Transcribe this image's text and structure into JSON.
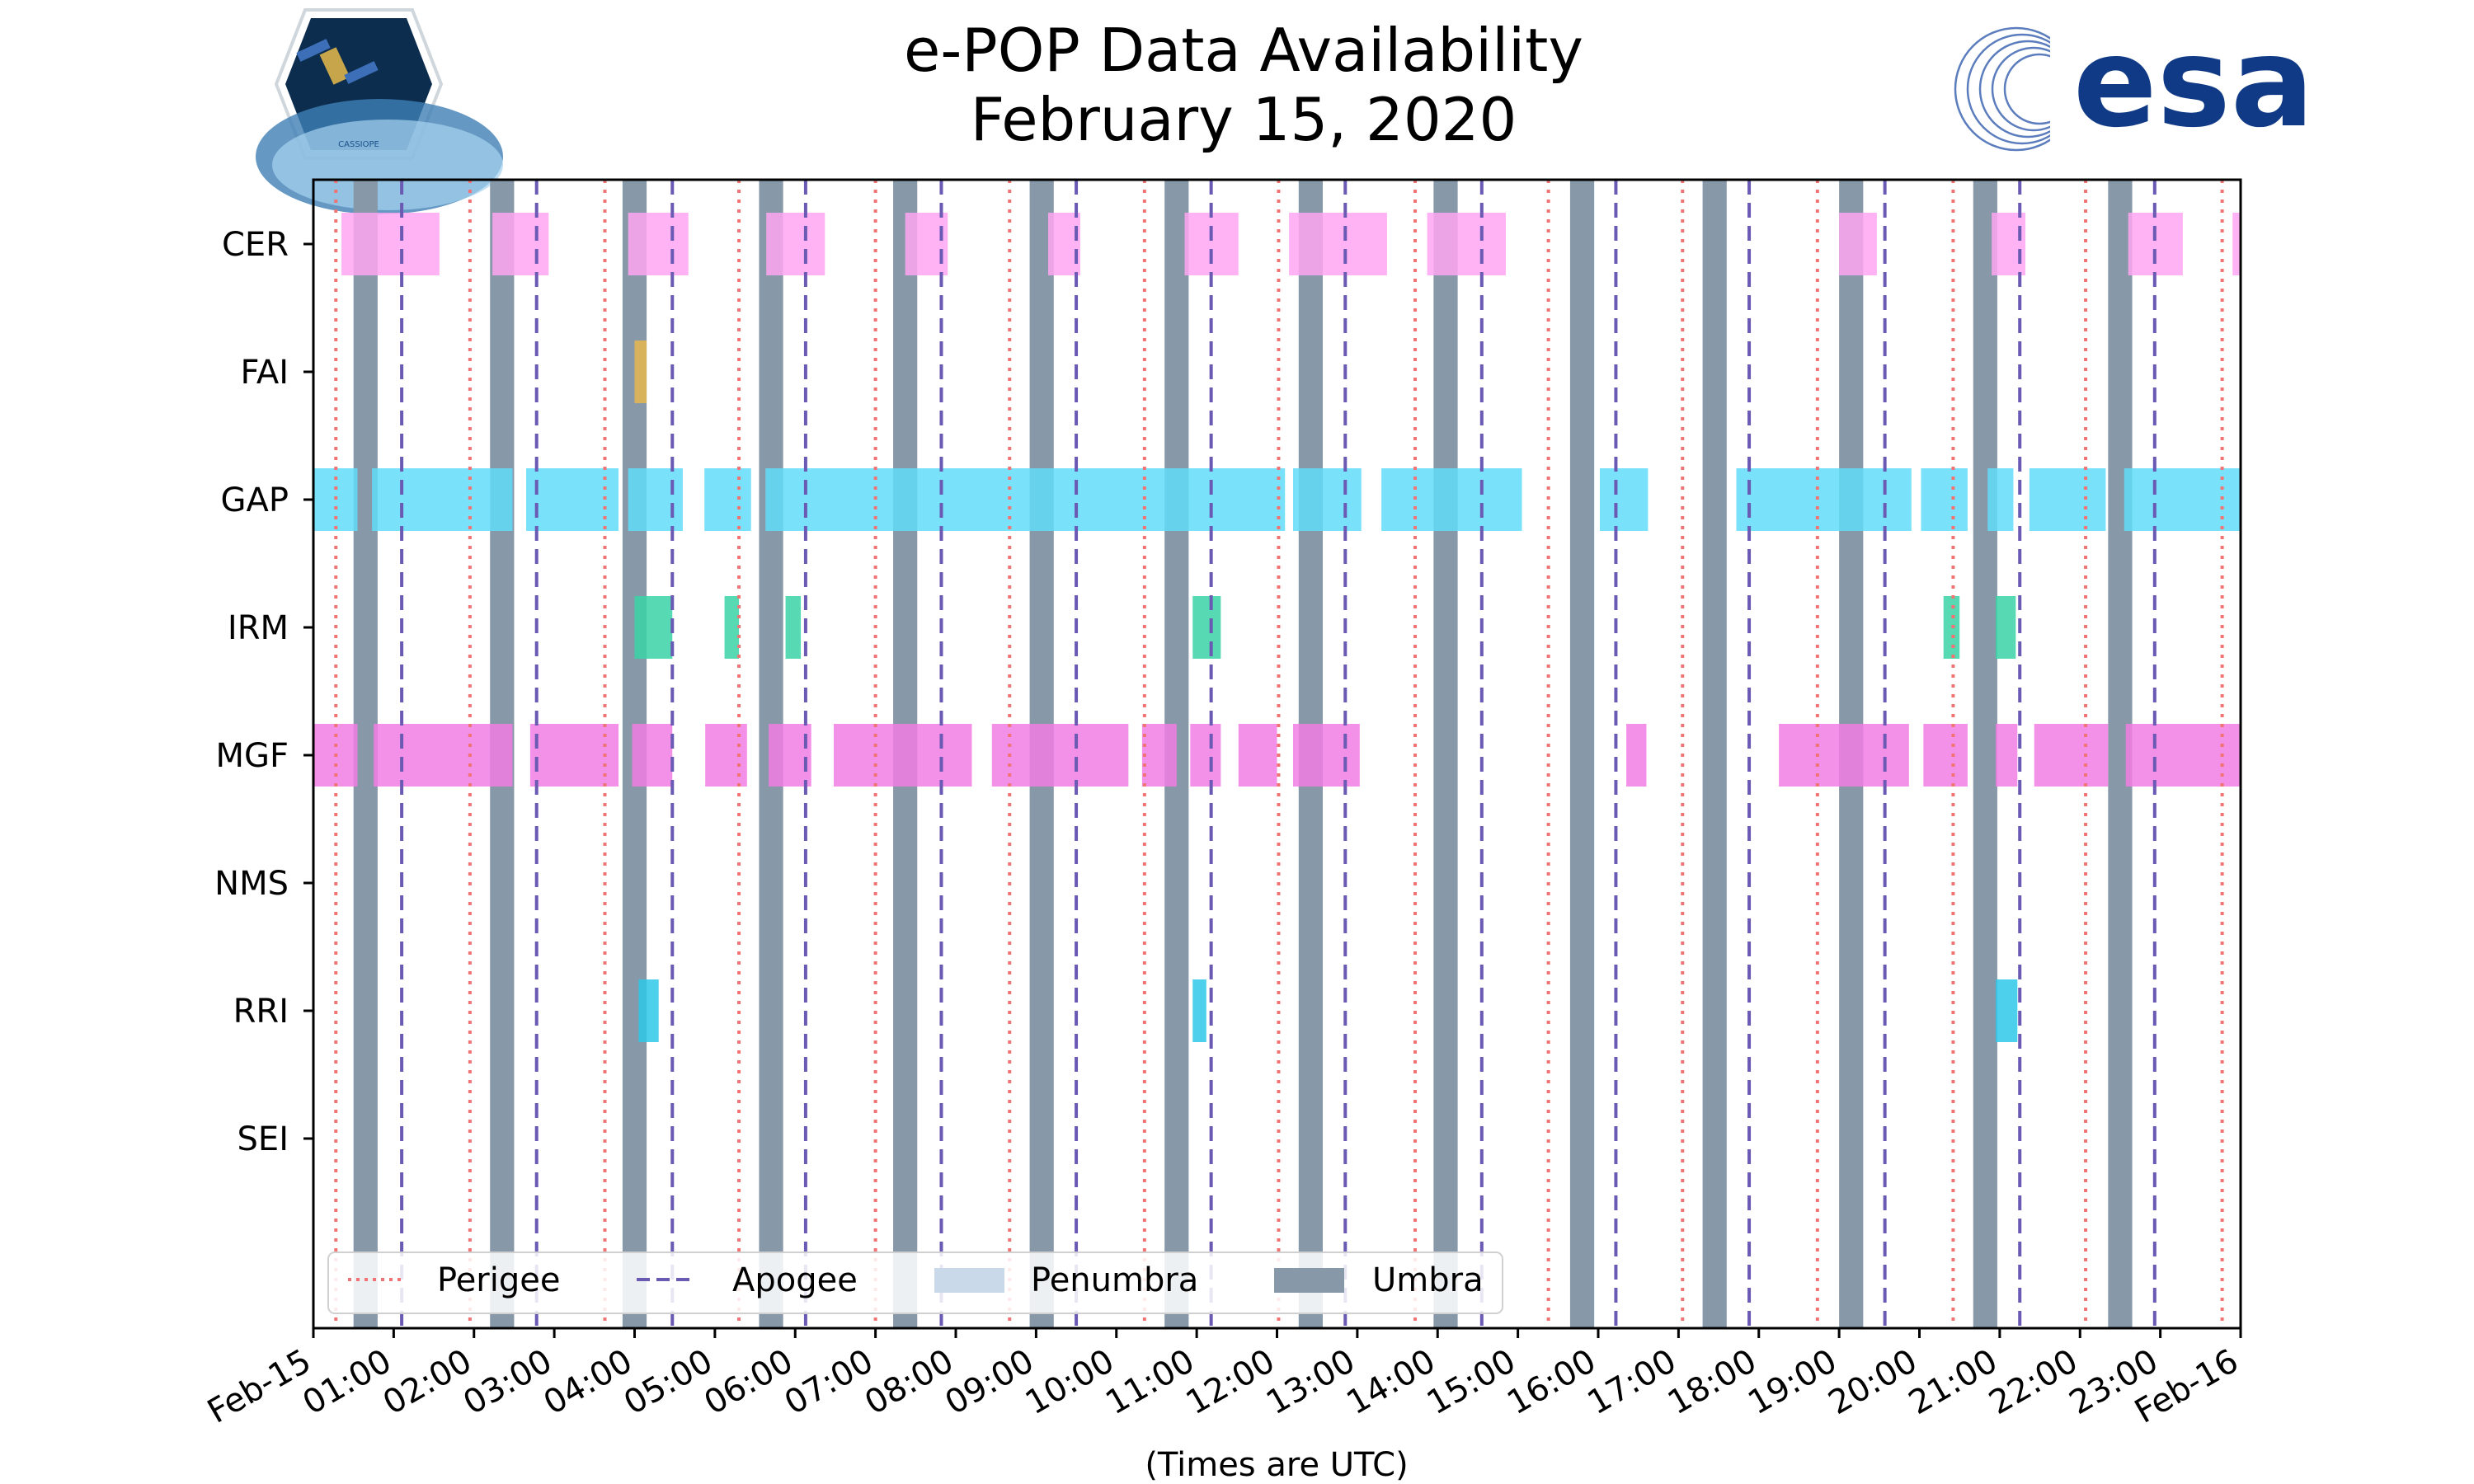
{
  "title": "e-POP Data Availability",
  "subtitle": "February 15, 2020",
  "logos": {
    "left": {
      "name": "CASSIOPE",
      "text": "CASSIOPE"
    },
    "right": {
      "name": "esa",
      "text": "esa"
    }
  },
  "colors": {
    "perigee": "#f07474",
    "apogee": "#6a5ab3",
    "penumbra": "#c9d9ea",
    "umbra": "#8798a8",
    "CER": "#ffa6f2",
    "FAI": "#e8b64f",
    "GAP": "#62dcf8",
    "IRM": "#3ad3a6",
    "MGF": "#f17de3",
    "RRI": "#2ec8e8"
  },
  "chart_data": {
    "type": "timeline",
    "title": "e-POP Data Availability\nFebruary 15, 2020",
    "xlabel": "(Times are UTC)",
    "x_range_hours": [
      0,
      24
    ],
    "x_tick_labels": [
      "Feb-15",
      "01:00",
      "02:00",
      "03:00",
      "04:00",
      "05:00",
      "06:00",
      "07:00",
      "08:00",
      "09:00",
      "10:00",
      "11:00",
      "12:00",
      "13:00",
      "14:00",
      "15:00",
      "16:00",
      "17:00",
      "18:00",
      "19:00",
      "20:00",
      "21:00",
      "22:00",
      "23:00",
      "Feb-16"
    ],
    "categories": [
      "CER",
      "FAI",
      "GAP",
      "IRM",
      "MGF",
      "NMS",
      "RRI",
      "SEI"
    ],
    "series": [
      {
        "name": "CER",
        "intervals": [
          [
            0.35,
            1.57
          ],
          [
            2.23,
            2.93
          ],
          [
            3.92,
            4.67
          ],
          [
            5.64,
            6.37
          ],
          [
            7.37,
            7.9
          ],
          [
            9.15,
            9.55
          ],
          [
            10.85,
            11.52
          ],
          [
            12.15,
            13.37
          ],
          [
            13.87,
            14.85
          ],
          [
            19.0,
            19.47
          ],
          [
            20.9,
            21.32
          ],
          [
            22.6,
            23.28
          ],
          [
            23.9,
            24.0
          ]
        ]
      },
      {
        "name": "FAI",
        "intervals": [
          [
            4.0,
            4.15
          ]
        ]
      },
      {
        "name": "GAP",
        "intervals": [
          [
            0.0,
            0.55
          ],
          [
            0.73,
            2.48
          ],
          [
            2.65,
            3.8
          ],
          [
            3.92,
            4.6
          ],
          [
            4.87,
            5.45
          ],
          [
            5.63,
            12.1
          ],
          [
            12.2,
            13.05
          ],
          [
            13.3,
            15.05
          ],
          [
            16.02,
            16.62
          ],
          [
            17.72,
            19.9
          ],
          [
            20.02,
            20.6
          ],
          [
            20.85,
            21.17
          ],
          [
            21.37,
            22.32
          ],
          [
            22.55,
            24.0
          ]
        ]
      },
      {
        "name": "IRM",
        "intervals": [
          [
            4.0,
            4.47
          ],
          [
            5.12,
            5.3
          ],
          [
            5.88,
            6.07
          ],
          [
            10.95,
            11.3
          ],
          [
            20.3,
            20.5
          ],
          [
            20.95,
            21.2
          ]
        ]
      },
      {
        "name": "MGF",
        "intervals": [
          [
            0.0,
            0.55
          ],
          [
            0.75,
            2.48
          ],
          [
            2.7,
            3.8
          ],
          [
            3.97,
            4.47
          ],
          [
            4.88,
            5.4
          ],
          [
            5.67,
            6.2
          ],
          [
            6.48,
            8.2
          ],
          [
            8.45,
            10.15
          ],
          [
            10.32,
            10.75
          ],
          [
            10.92,
            11.3
          ],
          [
            11.52,
            12.0
          ],
          [
            12.2,
            13.03
          ],
          [
            16.35,
            16.6
          ],
          [
            18.25,
            19.87
          ],
          [
            20.05,
            20.6
          ],
          [
            20.95,
            21.22
          ],
          [
            21.43,
            22.35
          ],
          [
            22.57,
            24.0
          ]
        ]
      },
      {
        "name": "NMS",
        "intervals": []
      },
      {
        "name": "RRI",
        "intervals": [
          [
            4.05,
            4.3
          ],
          [
            10.95,
            11.12
          ],
          [
            20.95,
            21.22
          ]
        ]
      },
      {
        "name": "SEI",
        "intervals": []
      }
    ],
    "umbra": [
      [
        0.5,
        0.8
      ],
      [
        2.2,
        2.5
      ],
      [
        3.85,
        4.15
      ],
      [
        5.55,
        5.85
      ],
      [
        7.22,
        7.52
      ],
      [
        8.92,
        9.22
      ],
      [
        10.6,
        10.9
      ],
      [
        12.27,
        12.57
      ],
      [
        13.95,
        14.25
      ],
      [
        15.65,
        15.95
      ],
      [
        17.3,
        17.6
      ],
      [
        19.0,
        19.3
      ],
      [
        20.67,
        20.97
      ],
      [
        22.35,
        22.65
      ]
    ],
    "perigee": [
      0.28,
      1.95,
      3.63,
      5.3,
      7.0,
      8.67,
      10.35,
      12.02,
      13.72,
      15.38,
      17.05,
      18.73,
      20.42,
      22.07,
      23.77
    ],
    "apogee": [
      1.1,
      2.78,
      4.47,
      6.13,
      7.82,
      9.5,
      11.18,
      12.85,
      14.55,
      16.22,
      17.88,
      19.57,
      21.25,
      22.93
    ],
    "legend": {
      "position": "lower-left",
      "entries": [
        "Perigee",
        "Apogee",
        "Penumbra",
        "Umbra"
      ]
    }
  }
}
